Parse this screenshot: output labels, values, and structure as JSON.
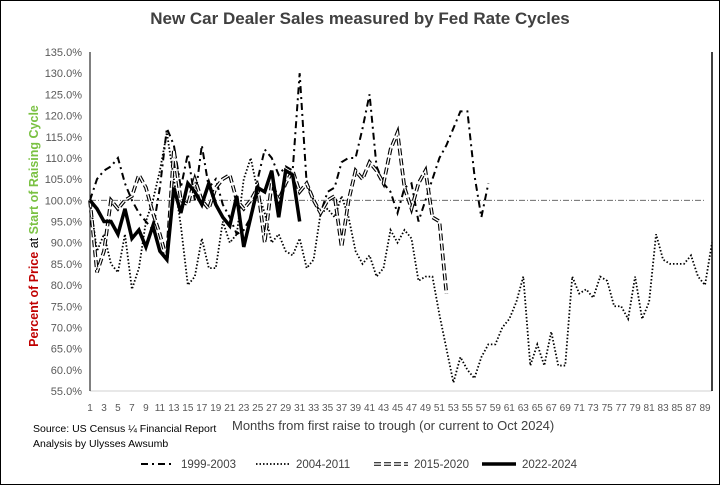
{
  "chart_data": {
    "type": "line",
    "title": "New Car Dealer Sales  measured by Fed Rate Cycles",
    "xlabel": "Months from first raise to trough (or current to Oct 2024)",
    "ylabel": {
      "part1": "Percent of Price",
      "part2": " at ",
      "part3": "Start of Raising Cycle"
    },
    "ylim": [
      55,
      135
    ],
    "xlim": [
      1,
      90
    ],
    "y_ticks": [
      "55.0%",
      "60.0%",
      "65.0%",
      "70.0%",
      "75.0%",
      "80.0%",
      "85.0%",
      "90.0%",
      "95.0%",
      "100.0%",
      "105.0%",
      "110.0%",
      "115.0%",
      "120.0%",
      "125.0%",
      "130.0%",
      "135.0%"
    ],
    "x_ticks": [
      1,
      3,
      5,
      7,
      9,
      11,
      13,
      15,
      17,
      19,
      21,
      23,
      25,
      27,
      29,
      31,
      33,
      35,
      37,
      39,
      41,
      43,
      45,
      47,
      49,
      51,
      53,
      55,
      57,
      59,
      61,
      63,
      65,
      67,
      69,
      71,
      73,
      75,
      77,
      79,
      81,
      83,
      85,
      87,
      89
    ],
    "reference_line": 100,
    "legend_position": "bottom",
    "series": [
      {
        "name": "1999-2003",
        "style": "dash-dot",
        "values": [
          100,
          105,
          107,
          108,
          110,
          104,
          100,
          97,
          95,
          93,
          103,
          117,
          113,
          103,
          111,
          100,
          113,
          103,
          105,
          99,
          96,
          92,
          93,
          96,
          105,
          112,
          110,
          106,
          108,
          107,
          130,
          104,
          100,
          97,
          102,
          103,
          109,
          110,
          110,
          117,
          125,
          108,
          104,
          102,
          97,
          103,
          104,
          95,
          100,
          105,
          110,
          113,
          117,
          121,
          121,
          106,
          96,
          104
        ]
      },
      {
        "name": "2004-2011",
        "style": "dotted",
        "values": [
          100,
          88,
          92,
          85,
          83,
          92,
          79,
          84,
          95,
          100,
          107,
          116,
          105,
          94,
          80,
          82,
          91,
          84,
          84,
          95,
          90,
          92,
          105,
          110,
          102,
          97,
          90,
          92,
          88,
          87,
          91,
          84,
          86,
          97,
          98,
          96,
          101,
          96,
          88,
          85,
          87,
          82,
          84,
          93,
          90,
          93,
          91,
          81,
          82,
          82,
          73,
          65,
          57,
          63,
          60,
          58,
          63,
          66,
          66,
          70,
          72,
          76,
          82,
          61,
          66,
          61,
          69,
          61,
          61,
          82,
          78,
          79,
          77,
          82,
          81,
          75,
          75,
          72,
          82,
          72,
          76,
          92,
          86,
          85,
          85,
          85,
          87,
          82,
          80,
          90
        ]
      },
      {
        "name": "2015-2020",
        "style": "double-dash",
        "values": [
          100,
          83,
          88,
          100,
          98,
          100,
          101,
          106,
          103,
          97,
          92,
          86,
          112,
          100,
          99,
          105,
          100,
          98,
          103,
          105,
          106,
          100,
          98,
          100,
          103,
          90,
          104,
          100,
          104,
          107,
          102,
          104,
          100,
          97,
          100,
          101,
          89,
          100,
          107,
          105,
          109,
          107,
          104,
          112,
          116,
          103,
          98,
          104,
          107,
          96,
          95,
          78
        ]
      },
      {
        "name": "2022-2024",
        "style": "solid-thick",
        "values": [
          100,
          98,
          95,
          95,
          92,
          98,
          91,
          93,
          89,
          94,
          88,
          86,
          103,
          97,
          104,
          102,
          99,
          104,
          99,
          96,
          94,
          101,
          89,
          96,
          103,
          102,
          107,
          96,
          107,
          106,
          95
        ]
      }
    ]
  },
  "source": {
    "line1": "Source: US Census ¼ Financial Report",
    "line2": "Analysis by Ulysses Awsumb"
  }
}
